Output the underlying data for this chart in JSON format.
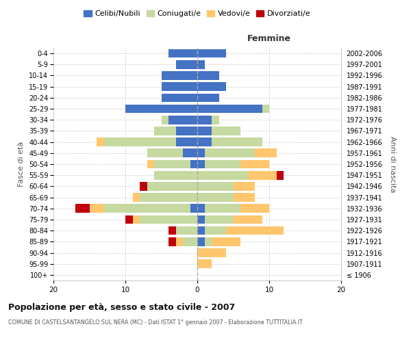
{
  "age_groups": [
    "100+",
    "95-99",
    "90-94",
    "85-89",
    "80-84",
    "75-79",
    "70-74",
    "65-69",
    "60-64",
    "55-59",
    "50-54",
    "45-49",
    "40-44",
    "35-39",
    "30-34",
    "25-29",
    "20-24",
    "15-19",
    "10-14",
    "5-9",
    "0-4"
  ],
  "birth_years": [
    "≤ 1906",
    "1907-1911",
    "1912-1916",
    "1917-1921",
    "1922-1926",
    "1927-1931",
    "1932-1936",
    "1937-1941",
    "1942-1946",
    "1947-1951",
    "1952-1956",
    "1957-1961",
    "1962-1966",
    "1967-1971",
    "1972-1976",
    "1977-1981",
    "1982-1986",
    "1987-1991",
    "1992-1996",
    "1997-2001",
    "2002-2006"
  ],
  "males": {
    "celibi": [
      0,
      0,
      0,
      0,
      0,
      0,
      1,
      0,
      0,
      0,
      1,
      2,
      3,
      3,
      4,
      10,
      5,
      5,
      5,
      3,
      4
    ],
    "coniugati": [
      0,
      0,
      0,
      2,
      3,
      8,
      12,
      8,
      7,
      6,
      5,
      5,
      10,
      3,
      1,
      0,
      0,
      0,
      0,
      0,
      0
    ],
    "vedovi": [
      0,
      0,
      0,
      1,
      0,
      1,
      2,
      1,
      0,
      0,
      1,
      0,
      1,
      0,
      0,
      0,
      0,
      0,
      0,
      0,
      0
    ],
    "divorziati": [
      0,
      0,
      0,
      1,
      1,
      1,
      2,
      0,
      1,
      0,
      0,
      0,
      0,
      0,
      0,
      0,
      0,
      0,
      0,
      0,
      0
    ]
  },
  "females": {
    "nubili": [
      0,
      0,
      0,
      1,
      1,
      1,
      1,
      0,
      0,
      0,
      1,
      1,
      2,
      2,
      2,
      9,
      3,
      4,
      3,
      1,
      4
    ],
    "coniugate": [
      0,
      0,
      0,
      1,
      3,
      4,
      5,
      5,
      5,
      7,
      5,
      7,
      7,
      4,
      1,
      1,
      0,
      0,
      0,
      0,
      0
    ],
    "vedove": [
      0,
      2,
      4,
      4,
      8,
      4,
      4,
      3,
      3,
      4,
      4,
      3,
      0,
      0,
      0,
      0,
      0,
      0,
      0,
      0,
      0
    ],
    "divorziate": [
      0,
      0,
      0,
      0,
      0,
      0,
      0,
      0,
      0,
      1,
      0,
      0,
      0,
      0,
      0,
      0,
      0,
      0,
      0,
      0,
      0
    ]
  },
  "colors": {
    "celibi_nubili": "#4472c4",
    "coniugati": "#c5d9a0",
    "vedovi": "#ffc66e",
    "divorziati": "#c0000b"
  },
  "xlim": 20,
  "title": "Popolazione per età, sesso e stato civile - 2007",
  "subtitle": "COMUNE DI CASTELSANTANGELO SUL NERA (MC) - Dati ISTAT 1° gennaio 2007 - Elaborazione TUTTITALIA.IT",
  "xlabel_right": "Femmine",
  "ylabel_left": "Fasce di età",
  "ylabel_right": "Anni di nascita",
  "legend_labels": [
    "Celibi/Nubili",
    "Coniugati/e",
    "Vedovi/e",
    "Divorziati/e"
  ],
  "background_color": "#ffffff",
  "grid_color": "#cccccc"
}
